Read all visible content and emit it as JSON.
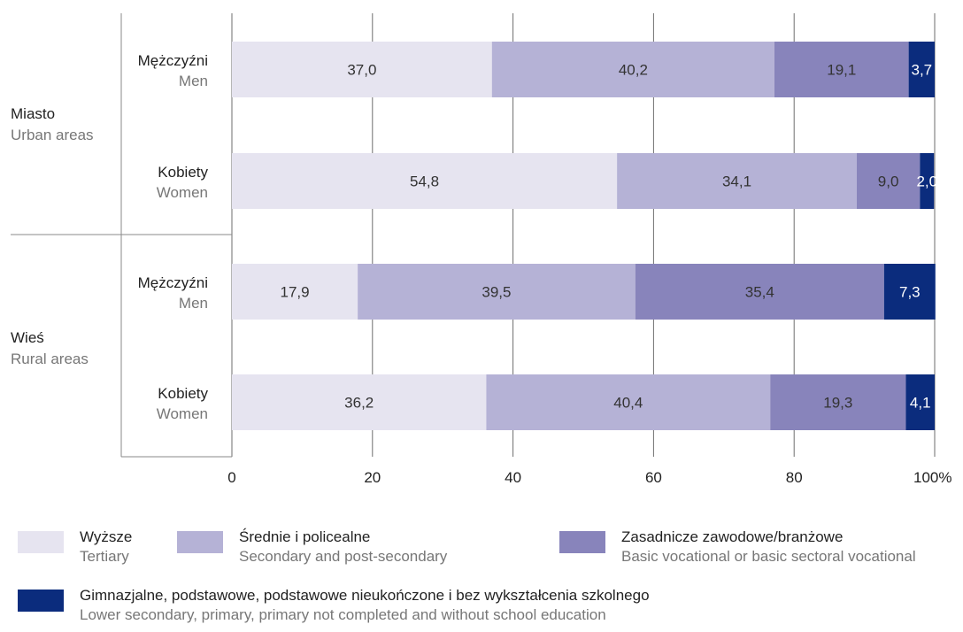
{
  "chart_data": {
    "type": "bar",
    "orientation": "horizontal",
    "stacked": true,
    "groups": [
      {
        "label_pl": "Miasto",
        "label_en": "Urban areas",
        "bars": [
          {
            "label_pl": "Mężczyźni",
            "label_en": "Men",
            "values": [
              37.0,
              40.2,
              19.1,
              3.7
            ],
            "labels": [
              "37,0",
              "40,2",
              "19,1",
              "3,7"
            ]
          },
          {
            "label_pl": "Kobiety",
            "label_en": "Women",
            "values": [
              54.8,
              34.1,
              9.0,
              2.0
            ],
            "labels": [
              "54,8",
              "34,1",
              "9,0",
              "2,0"
            ]
          }
        ]
      },
      {
        "label_pl": "Wieś",
        "label_en": "Rural areas",
        "bars": [
          {
            "label_pl": "Mężczyźni",
            "label_en": "Men",
            "values": [
              17.9,
              39.5,
              35.4,
              7.3
            ],
            "labels": [
              "17,9",
              "39,5",
              "35,4",
              "7,3"
            ]
          },
          {
            "label_pl": "Kobiety",
            "label_en": "Women",
            "values": [
              36.2,
              40.4,
              19.3,
              4.1
            ],
            "labels": [
              "36,2",
              "40,4",
              "19,3",
              "4,1"
            ]
          }
        ]
      }
    ],
    "series": [
      {
        "name_pl": "Wyższe",
        "name_en": "Tertiary",
        "color": "#e6e4f0",
        "label_color": "#333333"
      },
      {
        "name_pl": "Średnie i policealne",
        "name_en": "Secondary and post-secondary",
        "color": "#b5b2d6",
        "label_color": "#333333"
      },
      {
        "name_pl": "Zasadnicze zawodowe/branżowe",
        "name_en": "Basic vocational or basic sectoral vocational",
        "color": "#8884bb",
        "label_color": "#333333"
      },
      {
        "name_pl": "Gimnazjalne, podstawowe, podstawowe nieukończone i bez wykształcenia szkolnego",
        "name_en": "Lower secondary, primary, primary not completed and without school education",
        "color": "#0b2c7d",
        "label_color": "#ffffff"
      }
    ],
    "x_ticks": [
      "0",
      "20",
      "40",
      "60",
      "80",
      "100%"
    ],
    "xlim": [
      0,
      100
    ],
    "grid": true,
    "legend_position": "bottom"
  }
}
